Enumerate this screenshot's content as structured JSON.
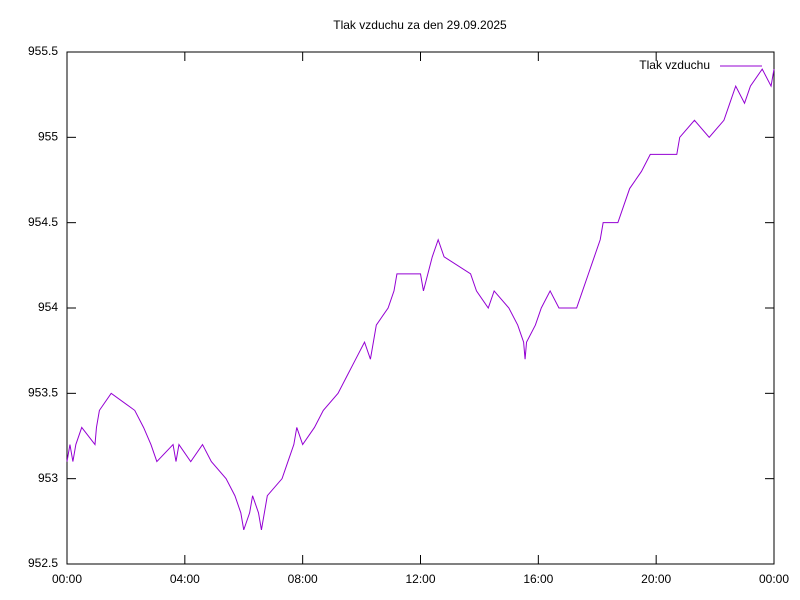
{
  "chart_data": {
    "type": "line",
    "title": "Tlak vzduchu za den 29.09.2025",
    "x": [
      0.0,
      0.1,
      0.2,
      0.3,
      0.5,
      0.95,
      1.0,
      1.1,
      1.5,
      2.3,
      2.6,
      2.85,
      3.05,
      3.6,
      3.7,
      3.8,
      4.2,
      4.6,
      4.9,
      5.4,
      5.7,
      5.9,
      6.0,
      6.2,
      6.3,
      6.5,
      6.6,
      6.7,
      6.8,
      7.3,
      7.5,
      7.7,
      7.8,
      8.0,
      8.4,
      8.7,
      9.2,
      9.5,
      9.8,
      10.1,
      10.3,
      10.4,
      10.5,
      10.9,
      11.1,
      11.2,
      12.0,
      12.1,
      12.4,
      12.6,
      12.8,
      13.7,
      13.9,
      14.3,
      14.5,
      15.0,
      15.3,
      15.5,
      15.55,
      15.6,
      15.9,
      16.1,
      16.4,
      16.7,
      17.3,
      17.5,
      17.7,
      17.9,
      18.1,
      18.2,
      18.7,
      18.9,
      19.1,
      19.5,
      19.8,
      20.3,
      20.7,
      20.8,
      21.3,
      21.8,
      22.3,
      22.5,
      22.7,
      23.0,
      23.2,
      23.6,
      23.9,
      24.0
    ],
    "series": [
      {
        "name": "Tlak vzduchu",
        "color": "#9400d3",
        "values": [
          953.1,
          953.2,
          953.1,
          953.2,
          953.3,
          953.2,
          953.3,
          953.4,
          953.5,
          953.4,
          953.3,
          953.2,
          953.1,
          953.2,
          953.1,
          953.2,
          953.1,
          953.2,
          953.1,
          953.0,
          952.9,
          952.8,
          952.7,
          952.8,
          952.9,
          952.8,
          952.7,
          952.8,
          952.9,
          953.0,
          953.1,
          953.2,
          953.3,
          953.2,
          953.3,
          953.4,
          953.5,
          953.6,
          953.7,
          953.8,
          953.7,
          953.8,
          953.9,
          954.0,
          954.1,
          954.2,
          954.2,
          954.1,
          954.3,
          954.4,
          954.3,
          954.2,
          954.1,
          954.0,
          954.1,
          954.0,
          953.9,
          953.8,
          953.7,
          953.8,
          953.9,
          954.0,
          954.1,
          954.0,
          954.0,
          954.1,
          954.2,
          954.3,
          954.4,
          954.5,
          954.5,
          954.6,
          954.7,
          954.8,
          954.9,
          954.9,
          954.9,
          955.0,
          955.1,
          955.0,
          955.1,
          955.2,
          955.3,
          955.2,
          955.3,
          955.4,
          955.3,
          955.4
        ]
      }
    ],
    "xlim": [
      0,
      24
    ],
    "xticks": [
      {
        "value": 0,
        "label": "00:00"
      },
      {
        "value": 4,
        "label": "04:00"
      },
      {
        "value": 8,
        "label": "08:00"
      },
      {
        "value": 12,
        "label": "12:00"
      },
      {
        "value": 16,
        "label": "16:00"
      },
      {
        "value": 20,
        "label": "20:00"
      },
      {
        "value": 24,
        "label": "00:00"
      }
    ],
    "ylim": [
      952.5,
      955.5
    ],
    "yticks": [
      952.5,
      953,
      953.5,
      954,
      954.5,
      955,
      955.5
    ],
    "legend": "upper right",
    "grid": false
  }
}
